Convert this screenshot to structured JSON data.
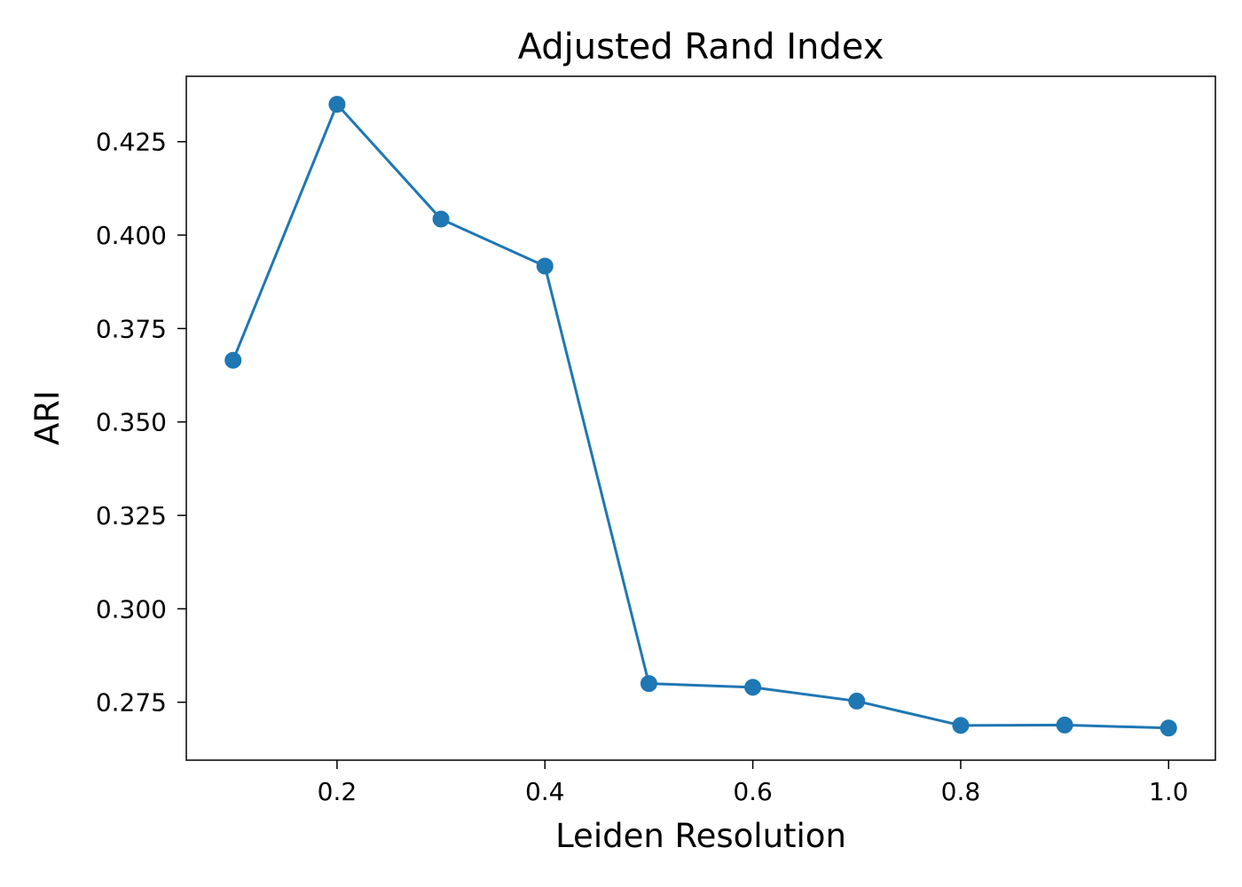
{
  "chart_data": {
    "type": "line",
    "title": "Adjusted Rand Index",
    "xlabel": "Leiden Resolution",
    "ylabel": "ARI",
    "x": [
      0.1,
      0.2,
      0.3,
      0.4,
      0.5,
      0.6,
      0.7,
      0.8,
      0.9,
      1.0
    ],
    "series": [
      {
        "values": [
          0.3665,
          0.435,
          0.4043,
          0.3917,
          0.28,
          0.279,
          0.2753,
          0.2688,
          0.2689,
          0.2681
        ],
        "color": "#1f77b4",
        "marker": "circle"
      }
    ],
    "xlim": [
      0.055,
      1.045
    ],
    "ylim": [
      0.2595,
      0.4425
    ],
    "xticks": [
      0.2,
      0.4,
      0.6,
      0.8,
      1.0
    ],
    "xtick_labels": [
      "0.2",
      "0.4",
      "0.6",
      "0.8",
      "1.0"
    ],
    "yticks": [
      0.275,
      0.3,
      0.325,
      0.35,
      0.375,
      0.4,
      0.425
    ],
    "ytick_labels": [
      "0.275",
      "0.300",
      "0.325",
      "0.350",
      "0.375",
      "0.400",
      "0.425"
    ],
    "grid": false,
    "legend": "none"
  }
}
